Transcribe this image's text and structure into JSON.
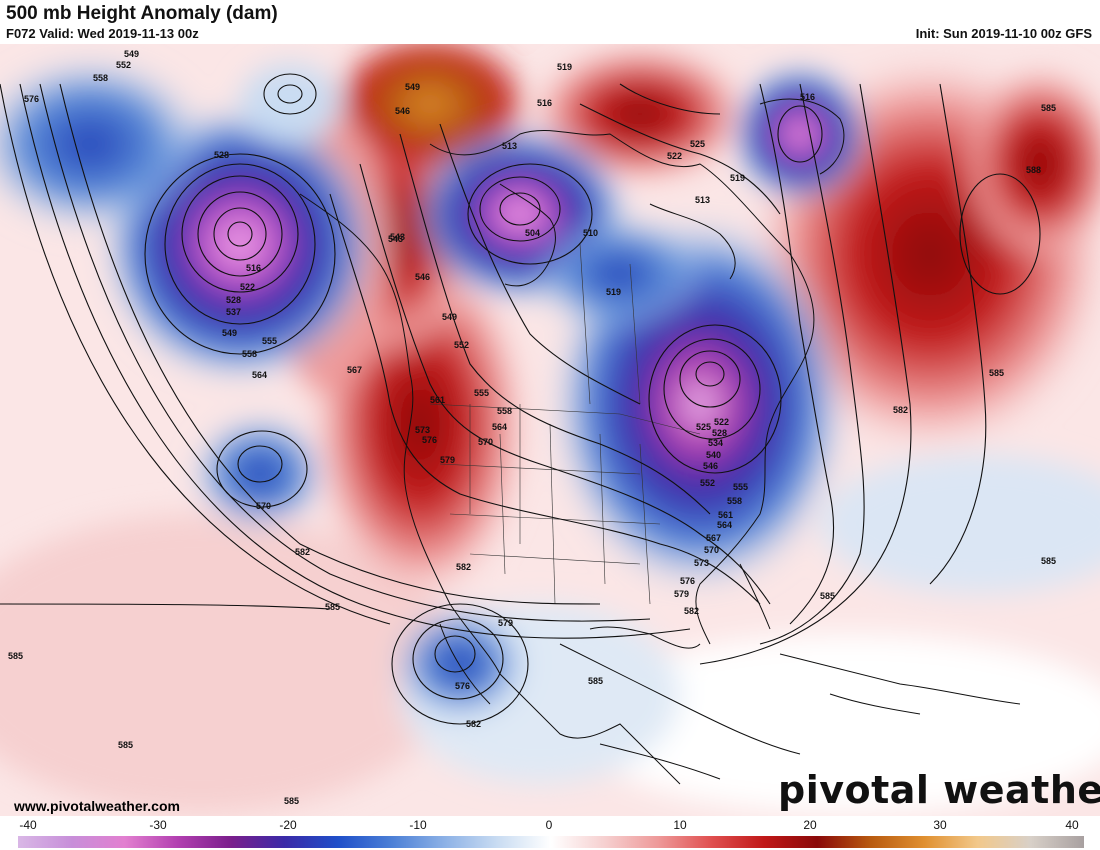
{
  "header": {
    "title": "500 mb Height Anomaly (dam)",
    "valid": "F072 Valid: Wed 2019-11-13 00z",
    "init": "Init: Sun 2019-11-10 00z GFS"
  },
  "footer": {
    "url": "www.pivotalweather.com",
    "brand": "pivotal weather"
  },
  "colorbar": {
    "ticks": [
      "-40",
      "-30",
      "-20",
      "-10",
      "0",
      "10",
      "20",
      "30",
      "40"
    ],
    "colors": [
      "#d9b7e6",
      "#c78fd9",
      "#e27fd0",
      "#b23fb0",
      "#7a1f8c",
      "#3a2aa8",
      "#1f4fc9",
      "#4b7fd6",
      "#8cb1e6",
      "#c9dcf2",
      "#ffffff",
      "#f6d0d0",
      "#ee9a9a",
      "#e05050",
      "#c01818",
      "#8a0a0a",
      "#b85a10",
      "#e09030",
      "#f2c88a",
      "#d8d0c8",
      "#a8a0a0"
    ]
  },
  "map": {
    "height_labels": [
      "549",
      "552",
      "558",
      "576",
      "528",
      "516",
      "522",
      "528",
      "537",
      "549",
      "555",
      "558",
      "564",
      "567",
      "570",
      "582",
      "585",
      "585",
      "585",
      "585",
      "549",
      "546",
      "543",
      "519",
      "516",
      "513",
      "504",
      "510",
      "519",
      "525",
      "522",
      "519",
      "513",
      "516",
      "585",
      "588",
      "585",
      "582",
      "543",
      "546",
      "549",
      "552",
      "555",
      "558",
      "561",
      "564",
      "570",
      "573",
      "576",
      "579",
      "582",
      "579",
      "576",
      "582",
      "585",
      "522",
      "525",
      "528",
      "534",
      "540",
      "546",
      "552",
      "555",
      "558",
      "561",
      "564",
      "567",
      "570",
      "573",
      "576",
      "579",
      "582",
      "585",
      "585"
    ]
  }
}
